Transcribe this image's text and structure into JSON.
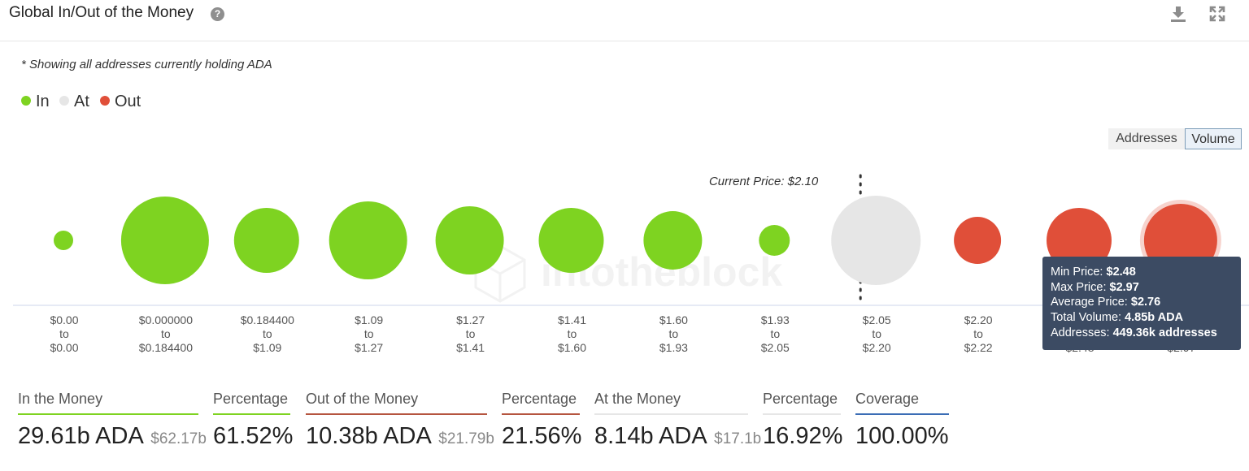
{
  "header": {
    "title": "Global In/Out of the Money",
    "help": "?"
  },
  "note": "* Showing all addresses currently holding ADA",
  "legend": [
    {
      "label": "In",
      "color": "#7ed321"
    },
    {
      "label": "At",
      "color": "#e6e6e6"
    },
    {
      "label": "Out",
      "color": "#e04f39"
    }
  ],
  "toggle": {
    "addresses": "Addresses",
    "volume": "Volume",
    "selected": "Volume"
  },
  "watermark": "intotheblock",
  "chart_data": {
    "type": "bubble",
    "current_price_label": "Current Price: $2.10",
    "current_price_between": [
      "$2.05",
      "$2.20"
    ],
    "buckets": [
      {
        "from": "$0.00",
        "to": "$0.00",
        "status": "In",
        "bubble_size": 24
      },
      {
        "from": "$0.000000",
        "to": "$0.184400",
        "status": "In",
        "bubble_size": 108
      },
      {
        "from": "$0.184400",
        "to": "$1.09",
        "status": "In",
        "bubble_size": 80
      },
      {
        "from": "$1.09",
        "to": "$1.27",
        "status": "In",
        "bubble_size": 96
      },
      {
        "from": "$1.27",
        "to": "$1.41",
        "status": "In",
        "bubble_size": 84
      },
      {
        "from": "$1.41",
        "to": "$1.60",
        "status": "In",
        "bubble_size": 80
      },
      {
        "from": "$1.60",
        "to": "$1.93",
        "status": "In",
        "bubble_size": 72
      },
      {
        "from": "$1.93",
        "to": "$2.05",
        "status": "In",
        "bubble_size": 38
      },
      {
        "from": "$2.05",
        "to": "$2.20",
        "status": "At",
        "bubble_size": 110
      },
      {
        "from": "$2.20",
        "to": "$2.22",
        "status": "Out",
        "bubble_size": 58
      },
      {
        "from": "$2.22",
        "to": "$2.48",
        "status": "Out",
        "bubble_size": 80
      },
      {
        "from": "$2.48",
        "to": "$2.97",
        "status": "Out",
        "bubble_size": 90,
        "highlighted": true
      }
    ],
    "to_word": "to"
  },
  "tooltip": {
    "min_label": "Min Price: ",
    "min_value": "$2.48",
    "max_label": "Max Price: ",
    "max_value": "$2.97",
    "avg_label": "Average Price: ",
    "avg_value": "$2.76",
    "vol_label": "Total Volume: ",
    "vol_value": "4.85b ADA",
    "addr_label": "Addresses: ",
    "addr_value": "449.36k addresses"
  },
  "stats": {
    "in_money": {
      "label": "In the Money",
      "value": "29.61b ADA",
      "usd": "$62.17b",
      "color": "#7ed321"
    },
    "in_pct": {
      "label": "Percentage",
      "value": "61.52%",
      "color": "#7ed321"
    },
    "out_money": {
      "label": "Out of the Money",
      "value": "10.38b ADA",
      "usd": "$21.79b",
      "color": "#b5553f"
    },
    "out_pct": {
      "label": "Percentage",
      "value": "21.56%",
      "color": "#b5553f"
    },
    "at_money": {
      "label": "At the Money",
      "value": "8.14b ADA",
      "usd": "$17.1b",
      "color": "#e6e6e6"
    },
    "at_pct": {
      "label": "Percentage",
      "value": "16.92%",
      "color": "#e6e6e6"
    },
    "coverage": {
      "label": "Coverage",
      "value": "100.00%",
      "color": "#3b6db5"
    }
  }
}
